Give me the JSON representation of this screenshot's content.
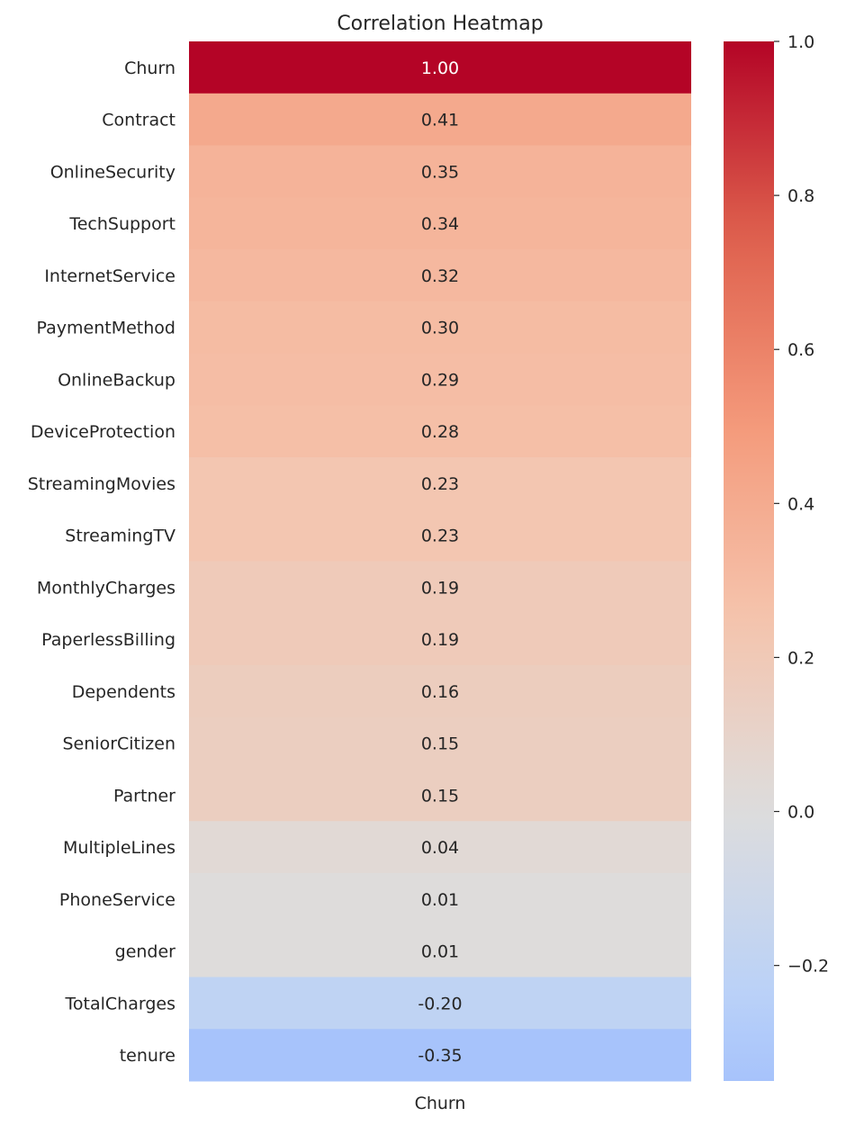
{
  "chart_data": {
    "type": "heatmap",
    "title": "Correlation Heatmap",
    "xlabel": "",
    "ylabel": "",
    "columns": [
      "Churn"
    ],
    "rows": [
      "Churn",
      "Contract",
      "OnlineSecurity",
      "TechSupport",
      "InternetService",
      "PaymentMethod",
      "OnlineBackup",
      "DeviceProtection",
      "StreamingMovies",
      "StreamingTV",
      "MonthlyCharges",
      "PaperlessBilling",
      "Dependents",
      "SeniorCitizen",
      "Partner",
      "MultipleLines",
      "PhoneService",
      "gender",
      "TotalCharges",
      "tenure"
    ],
    "values": [
      1.0,
      0.41,
      0.35,
      0.34,
      0.32,
      0.3,
      0.29,
      0.28,
      0.23,
      0.23,
      0.19,
      0.19,
      0.16,
      0.15,
      0.15,
      0.04,
      0.01,
      0.01,
      -0.2,
      -0.35
    ],
    "value_labels": [
      "1.00",
      "0.41",
      "0.35",
      "0.34",
      "0.32",
      "0.30",
      "0.29",
      "0.28",
      "0.23",
      "0.23",
      "0.19",
      "0.19",
      "0.16",
      "0.15",
      "0.15",
      "0.04",
      "0.01",
      "0.01",
      "-0.20",
      "-0.35"
    ],
    "colormap": "coolwarm",
    "center": 0,
    "colorbar": {
      "range": [
        -0.35,
        1.0
      ],
      "ticks": [
        1.0,
        0.8,
        0.6,
        0.4,
        0.2,
        0.0,
        -0.2
      ],
      "tick_labels": [
        "1.0",
        "0.8",
        "0.6",
        "0.4",
        "0.2",
        "0.0",
        "−0.2"
      ]
    },
    "colors": {
      "max": "#b40426",
      "center": "#dddcdc",
      "min": "#a6c4fe",
      "text_dark": "#262626",
      "text_light": "#ffffff"
    }
  }
}
